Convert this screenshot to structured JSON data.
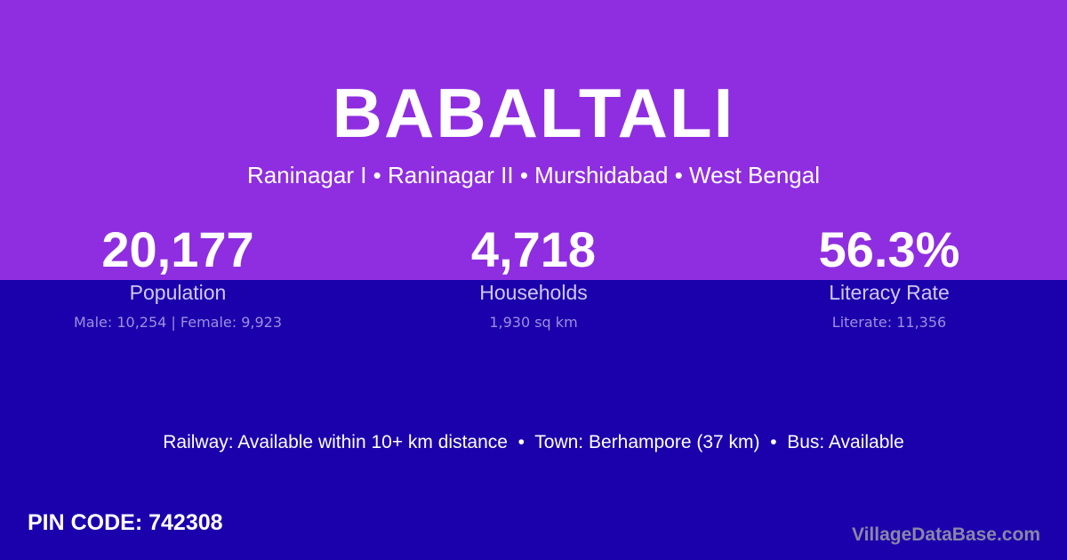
{
  "colors": {
    "top_bg": "#8f2ee0",
    "bottom_bg": "#1a01ab"
  },
  "title": "BABALTALI",
  "subtitle": "Raninagar I • Raninagar II • Murshidabad • West Bengal",
  "stats": [
    {
      "value": "20,177",
      "label": "Population",
      "sub": "Male: 10,254 | Female: 9,923"
    },
    {
      "value": "4,718",
      "label": "Households",
      "sub": "1,930 sq km"
    },
    {
      "value": "56.3%",
      "label": "Literacy Rate",
      "sub": "Literate: 11,356"
    }
  ],
  "info": "Railway: Available within 10+ km distance  •  Town: Berhampore (37 km)  •  Bus: Available",
  "pin": "PIN CODE: 742308",
  "brand": "VillageDataBase.com"
}
